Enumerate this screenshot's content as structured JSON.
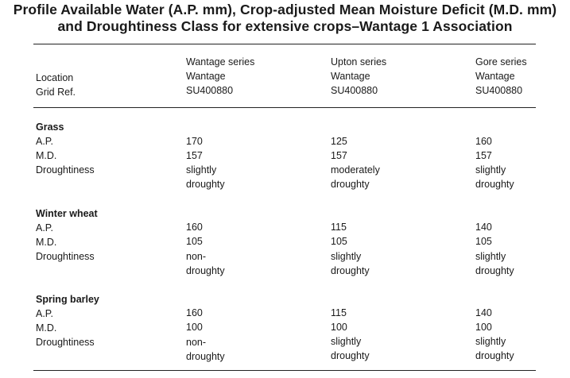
{
  "title": {
    "line1": "Profile Available Water (A.P. mm), Crop-adjusted Mean Moisture Deficit (M.D. mm)",
    "line2": "and Droughtiness Class for extensive crops–Wantage 1 Association"
  },
  "header": {
    "row_labels": {
      "location": "Location",
      "grid_ref": "Grid Ref."
    },
    "columns": [
      {
        "series": "Wantage series",
        "location": "Wantage",
        "grid_ref": "SU400880"
      },
      {
        "series": "Upton series",
        "location": "Wantage",
        "grid_ref": "SU400880"
      },
      {
        "series": "Gore series",
        "location": "Wantage",
        "grid_ref": "SU400880"
      }
    ]
  },
  "row_labels": {
    "ap": "A.P.",
    "md": "M.D.",
    "droughtiness": "Droughtiness"
  },
  "sections": [
    {
      "name": "Grass",
      "ap": [
        "170",
        "125",
        "160"
      ],
      "md": [
        "157",
        "157",
        "157"
      ],
      "droughtiness": [
        [
          "slightly",
          "droughty"
        ],
        [
          "moderately",
          "droughty"
        ],
        [
          "slightly",
          "droughty"
        ]
      ]
    },
    {
      "name": "Winter wheat",
      "ap": [
        "160",
        "115",
        "140"
      ],
      "md": [
        "105",
        "105",
        "105"
      ],
      "droughtiness": [
        [
          "non-",
          "droughty"
        ],
        [
          "slightly",
          "droughty"
        ],
        [
          "slightly",
          "droughty"
        ]
      ]
    },
    {
      "name": "Spring barley",
      "ap": [
        "160",
        "115",
        "140"
      ],
      "md": [
        "100",
        "100",
        "100"
      ],
      "droughtiness": [
        [
          "non-",
          "droughty"
        ],
        [
          "slightly",
          "droughty"
        ],
        [
          "slightly",
          "droughty"
        ]
      ]
    }
  ]
}
